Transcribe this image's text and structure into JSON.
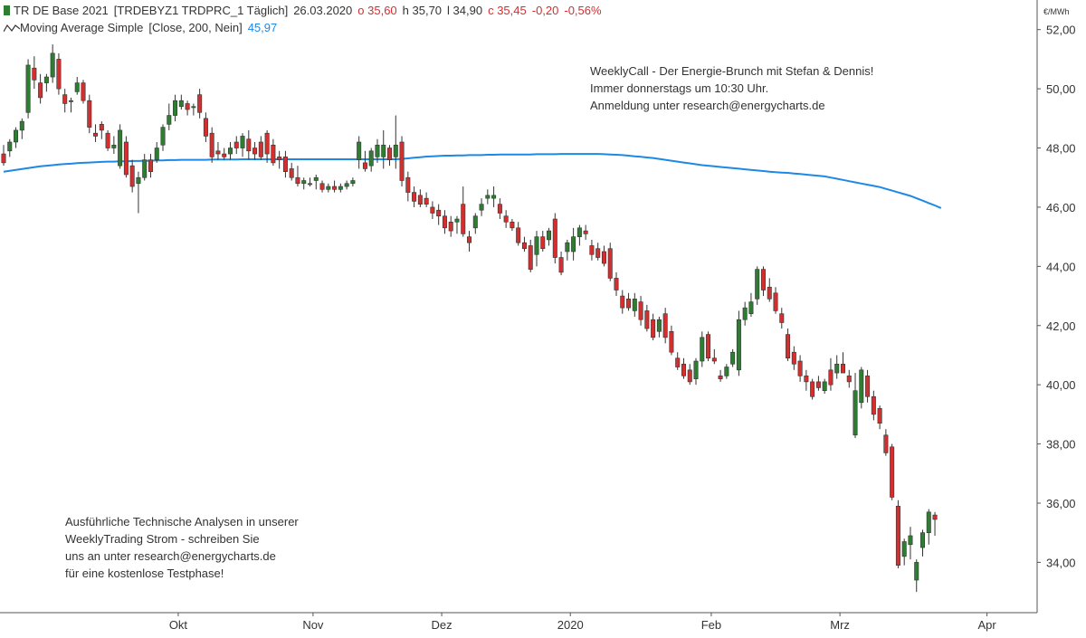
{
  "instrument": {
    "name": "TR DE Base 2021",
    "symbol": "[TRDEBYZ1 TRDPRC_1 Täglich]",
    "date": "26.03.2020",
    "open": "o 35,60",
    "high": "h 35,70",
    "low": "l 34,90",
    "close": "c 35,45",
    "change": "-0,20",
    "change_pct": "-0,56%"
  },
  "indicator": {
    "label": "Moving Average Simple",
    "params": "[Close, 200, Nein]",
    "value": "45,97"
  },
  "notes": {
    "weekly_call": [
      "WeeklyCall - Der Energie-Brunch mit Stefan & Dennis!",
      "Immer donnerstags um 10:30 Uhr.",
      "Anmeldung unter research@energycharts.de"
    ],
    "analysis": [
      "Ausführliche Technische Analysen in unserer",
      "WeeklyTrading Strom - schreiben Sie",
      "uns an unter research@energycharts.de",
      "für eine kostenlose Testphase!"
    ]
  },
  "colors": {
    "up": "#2e7d32",
    "down": "#d32f2f",
    "ma": "#1e88e5",
    "axis": "#555555",
    "text": "#333333"
  },
  "chart_data": {
    "type": "candlestick",
    "unit": "€/MWh",
    "ylim": [
      32.3,
      53.0
    ],
    "y_ticks": [
      "52,00",
      "50,00",
      "48,00",
      "46,00",
      "44,00",
      "42,00",
      "40,00",
      "38,00",
      "36,00",
      "34,00"
    ],
    "y_tick_values": [
      52,
      50,
      48,
      46,
      44,
      42,
      40,
      38,
      36,
      34
    ],
    "x_ticks": [
      "Okt",
      "Nov",
      "Dez",
      "2020",
      "Feb",
      "Mrz",
      "Apr"
    ],
    "x_tick_indices": [
      28.5,
      50.5,
      71.5,
      92.5,
      115.5,
      136.5,
      160.5
    ],
    "candles": [
      {
        "o": 47.8,
        "h": 48.1,
        "l": 47.4,
        "c": 47.5
      },
      {
        "o": 47.9,
        "h": 48.3,
        "l": 47.7,
        "c": 48.2
      },
      {
        "o": 48.2,
        "h": 48.7,
        "l": 48.0,
        "c": 48.6
      },
      {
        "o": 48.6,
        "h": 49.0,
        "l": 48.3,
        "c": 48.9
      },
      {
        "o": 49.2,
        "h": 51.0,
        "l": 49.0,
        "c": 50.8
      },
      {
        "o": 50.7,
        "h": 51.1,
        "l": 50.0,
        "c": 50.3
      },
      {
        "o": 50.2,
        "h": 50.5,
        "l": 49.5,
        "c": 49.7
      },
      {
        "o": 50.2,
        "h": 50.5,
        "l": 49.9,
        "c": 50.4
      },
      {
        "o": 50.4,
        "h": 51.5,
        "l": 50.2,
        "c": 51.2
      },
      {
        "o": 51.0,
        "h": 51.2,
        "l": 49.8,
        "c": 50.0
      },
      {
        "o": 49.8,
        "h": 50.0,
        "l": 49.2,
        "c": 49.5
      },
      {
        "o": 49.6,
        "h": 49.7,
        "l": 49.2,
        "c": 49.6
      },
      {
        "o": 49.9,
        "h": 50.4,
        "l": 49.8,
        "c": 50.2
      },
      {
        "o": 50.2,
        "h": 50.3,
        "l": 49.5,
        "c": 49.6
      },
      {
        "o": 49.6,
        "h": 49.8,
        "l": 48.5,
        "c": 48.7
      },
      {
        "o": 48.5,
        "h": 48.8,
        "l": 48.2,
        "c": 48.4
      },
      {
        "o": 48.8,
        "h": 48.9,
        "l": 48.3,
        "c": 48.6
      },
      {
        "o": 48.5,
        "h": 48.6,
        "l": 47.9,
        "c": 48.0
      },
      {
        "o": 48.0,
        "h": 48.4,
        "l": 47.8,
        "c": 48.1
      },
      {
        "o": 47.4,
        "h": 48.8,
        "l": 47.3,
        "c": 48.6
      },
      {
        "o": 48.2,
        "h": 48.4,
        "l": 47.0,
        "c": 47.1
      },
      {
        "o": 47.4,
        "h": 47.6,
        "l": 46.5,
        "c": 46.7
      },
      {
        "o": 46.8,
        "h": 47.2,
        "l": 45.8,
        "c": 47.0
      },
      {
        "o": 47.0,
        "h": 47.8,
        "l": 46.9,
        "c": 47.6
      },
      {
        "o": 47.6,
        "h": 47.8,
        "l": 47.0,
        "c": 47.2
      },
      {
        "o": 47.6,
        "h": 48.2,
        "l": 47.5,
        "c": 48.0
      },
      {
        "o": 48.1,
        "h": 48.8,
        "l": 47.9,
        "c": 48.7
      },
      {
        "o": 48.8,
        "h": 49.5,
        "l": 48.6,
        "c": 49.1
      },
      {
        "o": 49.1,
        "h": 49.8,
        "l": 48.9,
        "c": 49.6
      },
      {
        "o": 49.4,
        "h": 49.8,
        "l": 49.3,
        "c": 49.6
      },
      {
        "o": 49.5,
        "h": 49.6,
        "l": 49.1,
        "c": 49.3
      },
      {
        "o": 49.4,
        "h": 49.5,
        "l": 49.1,
        "c": 49.4
      },
      {
        "o": 49.8,
        "h": 50.0,
        "l": 49.0,
        "c": 49.2
      },
      {
        "o": 49.0,
        "h": 49.2,
        "l": 48.2,
        "c": 48.4
      },
      {
        "o": 48.5,
        "h": 48.7,
        "l": 47.5,
        "c": 47.7
      },
      {
        "o": 47.9,
        "h": 48.2,
        "l": 47.6,
        "c": 47.8
      },
      {
        "o": 47.8,
        "h": 48.0,
        "l": 47.6,
        "c": 47.7
      },
      {
        "o": 47.8,
        "h": 48.2,
        "l": 47.6,
        "c": 48.0
      },
      {
        "o": 48.2,
        "h": 48.4,
        "l": 47.8,
        "c": 48.0
      },
      {
        "o": 48.0,
        "h": 48.5,
        "l": 47.7,
        "c": 48.4
      },
      {
        "o": 48.3,
        "h": 48.6,
        "l": 47.6,
        "c": 47.9
      },
      {
        "o": 48.0,
        "h": 48.2,
        "l": 47.6,
        "c": 47.8
      },
      {
        "o": 48.2,
        "h": 48.4,
        "l": 47.6,
        "c": 47.7
      },
      {
        "o": 48.5,
        "h": 48.6,
        "l": 47.5,
        "c": 47.8
      },
      {
        "o": 48.1,
        "h": 48.3,
        "l": 47.4,
        "c": 47.5
      },
      {
        "o": 47.7,
        "h": 47.9,
        "l": 47.3,
        "c": 47.6
      },
      {
        "o": 47.7,
        "h": 47.9,
        "l": 47.0,
        "c": 47.2
      },
      {
        "o": 47.3,
        "h": 47.5,
        "l": 46.9,
        "c": 47.0
      },
      {
        "o": 47.0,
        "h": 47.4,
        "l": 46.7,
        "c": 46.8
      },
      {
        "o": 46.8,
        "h": 47.0,
        "l": 46.6,
        "c": 46.9
      },
      {
        "o": 46.8,
        "h": 47.0,
        "l": 46.7,
        "c": 46.8
      },
      {
        "o": 46.9,
        "h": 47.1,
        "l": 46.6,
        "c": 47.0
      },
      {
        "o": 46.8,
        "h": 46.9,
        "l": 46.5,
        "c": 46.6
      },
      {
        "o": 46.6,
        "h": 46.8,
        "l": 46.5,
        "c": 46.7
      },
      {
        "o": 46.7,
        "h": 46.9,
        "l": 46.5,
        "c": 46.6
      },
      {
        "o": 46.6,
        "h": 46.8,
        "l": 46.5,
        "c": 46.7
      },
      {
        "o": 46.7,
        "h": 46.9,
        "l": 46.6,
        "c": 46.8
      },
      {
        "o": 46.8,
        "h": 47.0,
        "l": 46.7,
        "c": 46.9
      },
      {
        "o": 47.6,
        "h": 48.4,
        "l": 47.3,
        "c": 48.2
      },
      {
        "o": 47.5,
        "h": 47.9,
        "l": 47.2,
        "c": 47.3
      },
      {
        "o": 47.4,
        "h": 48.0,
        "l": 47.2,
        "c": 47.9
      },
      {
        "o": 47.7,
        "h": 48.3,
        "l": 47.5,
        "c": 48.1
      },
      {
        "o": 47.7,
        "h": 48.6,
        "l": 47.3,
        "c": 48.1
      },
      {
        "o": 48.0,
        "h": 48.1,
        "l": 47.4,
        "c": 47.6
      },
      {
        "o": 47.7,
        "h": 49.1,
        "l": 47.3,
        "c": 48.1
      },
      {
        "o": 48.2,
        "h": 48.4,
        "l": 46.7,
        "c": 46.9
      },
      {
        "o": 47.0,
        "h": 47.2,
        "l": 46.2,
        "c": 46.5
      },
      {
        "o": 46.5,
        "h": 46.7,
        "l": 46.0,
        "c": 46.2
      },
      {
        "o": 46.4,
        "h": 46.6,
        "l": 46.0,
        "c": 46.1
      },
      {
        "o": 46.3,
        "h": 46.5,
        "l": 46.0,
        "c": 46.1
      },
      {
        "o": 46.0,
        "h": 46.2,
        "l": 45.6,
        "c": 45.8
      },
      {
        "o": 45.9,
        "h": 46.1,
        "l": 45.4,
        "c": 45.7
      },
      {
        "o": 45.7,
        "h": 45.9,
        "l": 45.1,
        "c": 45.3
      },
      {
        "o": 45.5,
        "h": 45.7,
        "l": 45.0,
        "c": 45.2
      },
      {
        "o": 45.5,
        "h": 45.7,
        "l": 45.1,
        "c": 45.6
      },
      {
        "o": 46.1,
        "h": 46.7,
        "l": 45.0,
        "c": 45.1
      },
      {
        "o": 45.0,
        "h": 45.2,
        "l": 44.5,
        "c": 44.8
      },
      {
        "o": 45.3,
        "h": 45.8,
        "l": 45.1,
        "c": 45.7
      },
      {
        "o": 45.9,
        "h": 46.3,
        "l": 45.7,
        "c": 46.1
      },
      {
        "o": 46.3,
        "h": 46.6,
        "l": 46.1,
        "c": 46.4
      },
      {
        "o": 46.3,
        "h": 46.7,
        "l": 46.0,
        "c": 46.4
      },
      {
        "o": 46.1,
        "h": 46.3,
        "l": 45.6,
        "c": 45.8
      },
      {
        "o": 45.7,
        "h": 45.9,
        "l": 45.3,
        "c": 45.5
      },
      {
        "o": 45.5,
        "h": 45.6,
        "l": 45.2,
        "c": 45.3
      },
      {
        "o": 45.3,
        "h": 45.5,
        "l": 44.7,
        "c": 44.8
      },
      {
        "o": 44.8,
        "h": 45.0,
        "l": 44.5,
        "c": 44.6
      },
      {
        "o": 44.7,
        "h": 44.9,
        "l": 43.8,
        "c": 43.9
      },
      {
        "o": 44.4,
        "h": 45.2,
        "l": 44.0,
        "c": 45.0
      },
      {
        "o": 45.0,
        "h": 45.2,
        "l": 44.5,
        "c": 44.6
      },
      {
        "o": 44.9,
        "h": 45.3,
        "l": 44.7,
        "c": 45.2
      },
      {
        "o": 45.6,
        "h": 45.8,
        "l": 44.1,
        "c": 44.3
      },
      {
        "o": 44.3,
        "h": 44.5,
        "l": 43.7,
        "c": 43.8
      },
      {
        "o": 44.5,
        "h": 44.9,
        "l": 44.2,
        "c": 44.8
      },
      {
        "o": 44.5,
        "h": 45.3,
        "l": 44.2,
        "c": 45.0
      },
      {
        "o": 45.0,
        "h": 45.4,
        "l": 44.7,
        "c": 45.3
      },
      {
        "o": 45.2,
        "h": 45.4,
        "l": 44.9,
        "c": 45.1
      },
      {
        "o": 44.7,
        "h": 44.9,
        "l": 44.2,
        "c": 44.4
      },
      {
        "o": 44.6,
        "h": 44.8,
        "l": 44.2,
        "c": 44.3
      },
      {
        "o": 44.5,
        "h": 44.7,
        "l": 44.0,
        "c": 44.1
      },
      {
        "o": 44.6,
        "h": 44.8,
        "l": 43.5,
        "c": 43.6
      },
      {
        "o": 43.6,
        "h": 43.8,
        "l": 43.0,
        "c": 43.2
      },
      {
        "o": 43.0,
        "h": 43.2,
        "l": 42.4,
        "c": 42.6
      },
      {
        "o": 42.9,
        "h": 43.1,
        "l": 42.5,
        "c": 42.6
      },
      {
        "o": 42.5,
        "h": 43.1,
        "l": 42.3,
        "c": 42.9
      },
      {
        "o": 42.8,
        "h": 43.0,
        "l": 42.0,
        "c": 42.2
      },
      {
        "o": 42.5,
        "h": 42.7,
        "l": 41.8,
        "c": 41.9
      },
      {
        "o": 42.2,
        "h": 42.4,
        "l": 41.5,
        "c": 41.6
      },
      {
        "o": 41.8,
        "h": 42.3,
        "l": 41.6,
        "c": 42.2
      },
      {
        "o": 42.4,
        "h": 42.6,
        "l": 41.4,
        "c": 41.6
      },
      {
        "o": 41.8,
        "h": 42.0,
        "l": 41.0,
        "c": 41.1
      },
      {
        "o": 40.9,
        "h": 41.1,
        "l": 40.5,
        "c": 40.6
      },
      {
        "o": 40.7,
        "h": 40.9,
        "l": 40.2,
        "c": 40.3
      },
      {
        "o": 40.5,
        "h": 40.7,
        "l": 40.0,
        "c": 40.1
      },
      {
        "o": 40.2,
        "h": 40.9,
        "l": 40.0,
        "c": 40.8
      },
      {
        "o": 40.8,
        "h": 41.8,
        "l": 40.6,
        "c": 41.6
      },
      {
        "o": 41.7,
        "h": 41.8,
        "l": 40.8,
        "c": 40.9
      },
      {
        "o": 40.9,
        "h": 41.2,
        "l": 40.7,
        "c": 40.8
      },
      {
        "o": 40.3,
        "h": 40.5,
        "l": 40.1,
        "c": 40.2
      },
      {
        "o": 40.3,
        "h": 40.7,
        "l": 40.2,
        "c": 40.6
      },
      {
        "o": 40.7,
        "h": 41.2,
        "l": 40.6,
        "c": 41.1
      },
      {
        "o": 40.5,
        "h": 42.5,
        "l": 40.3,
        "c": 42.2
      },
      {
        "o": 42.2,
        "h": 42.8,
        "l": 42.0,
        "c": 42.6
      },
      {
        "o": 42.4,
        "h": 43.1,
        "l": 42.3,
        "c": 42.8
      },
      {
        "o": 42.9,
        "h": 44.0,
        "l": 42.7,
        "c": 43.9
      },
      {
        "o": 43.9,
        "h": 44.0,
        "l": 43.0,
        "c": 43.2
      },
      {
        "o": 43.3,
        "h": 43.6,
        "l": 42.8,
        "c": 42.9
      },
      {
        "o": 43.1,
        "h": 43.3,
        "l": 42.4,
        "c": 42.5
      },
      {
        "o": 42.4,
        "h": 42.6,
        "l": 41.9,
        "c": 42.1
      },
      {
        "o": 41.7,
        "h": 41.9,
        "l": 40.8,
        "c": 40.9
      },
      {
        "o": 41.1,
        "h": 41.3,
        "l": 40.5,
        "c": 40.7
      },
      {
        "o": 40.8,
        "h": 41.0,
        "l": 40.1,
        "c": 40.3
      },
      {
        "o": 40.3,
        "h": 40.5,
        "l": 39.8,
        "c": 40.1
      },
      {
        "o": 40.1,
        "h": 40.2,
        "l": 39.5,
        "c": 39.6
      },
      {
        "o": 40.1,
        "h": 40.3,
        "l": 39.8,
        "c": 39.9
      },
      {
        "o": 39.8,
        "h": 40.2,
        "l": 39.7,
        "c": 40.1
      },
      {
        "o": 40.5,
        "h": 40.9,
        "l": 39.8,
        "c": 40.0
      },
      {
        "o": 40.4,
        "h": 41.0,
        "l": 40.2,
        "c": 40.7
      },
      {
        "o": 40.7,
        "h": 41.1,
        "l": 40.5,
        "c": 40.4
      },
      {
        "o": 40.3,
        "h": 40.5,
        "l": 39.9,
        "c": 40.1
      },
      {
        "o": 38.3,
        "h": 40.4,
        "l": 38.2,
        "c": 39.8
      },
      {
        "o": 39.4,
        "h": 40.6,
        "l": 39.2,
        "c": 40.5
      },
      {
        "o": 40.3,
        "h": 40.5,
        "l": 39.4,
        "c": 39.6
      },
      {
        "o": 39.6,
        "h": 39.8,
        "l": 38.8,
        "c": 39.0
      },
      {
        "o": 39.2,
        "h": 39.3,
        "l": 38.5,
        "c": 38.7
      },
      {
        "o": 38.3,
        "h": 38.5,
        "l": 37.6,
        "c": 37.7
      },
      {
        "o": 37.9,
        "h": 38.0,
        "l": 36.1,
        "c": 36.2
      },
      {
        "o": 35.9,
        "h": 36.1,
        "l": 33.8,
        "c": 33.9
      },
      {
        "o": 34.2,
        "h": 34.8,
        "l": 33.9,
        "c": 34.7
      },
      {
        "o": 34.6,
        "h": 35.2,
        "l": 34.1,
        "c": 34.9
      },
      {
        "o": 33.4,
        "h": 34.1,
        "l": 33.0,
        "c": 34.0
      },
      {
        "o": 34.5,
        "h": 35.1,
        "l": 34.2,
        "c": 35.0
      },
      {
        "o": 35.0,
        "h": 35.8,
        "l": 34.6,
        "c": 35.7
      },
      {
        "o": 35.6,
        "h": 35.7,
        "l": 34.9,
        "c": 35.45
      }
    ],
    "ma": [
      47.2,
      47.23,
      47.26,
      47.29,
      47.32,
      47.35,
      47.38,
      47.4,
      47.42,
      47.44,
      47.46,
      47.47,
      47.49,
      47.5,
      47.51,
      47.52,
      47.53,
      47.54,
      47.54,
      47.55,
      47.55,
      47.56,
      47.56,
      47.57,
      47.57,
      47.58,
      47.58,
      47.59,
      47.59,
      47.6,
      47.6,
      47.6,
      47.6,
      47.6,
      47.61,
      47.61,
      47.61,
      47.61,
      47.61,
      47.62,
      47.62,
      47.62,
      47.62,
      47.62,
      47.62,
      47.62,
      47.62,
      47.62,
      47.62,
      47.62,
      47.62,
      47.62,
      47.62,
      47.62,
      47.62,
      47.62,
      47.62,
      47.62,
      47.62,
      47.62,
      47.62,
      47.62,
      47.62,
      47.62,
      47.62,
      47.63,
      47.65,
      47.67,
      47.69,
      47.71,
      47.72,
      47.73,
      47.74,
      47.74,
      47.75,
      47.75,
      47.76,
      47.76,
      47.76,
      47.77,
      47.77,
      47.78,
      47.78,
      47.78,
      47.78,
      47.78,
      47.78,
      47.79,
      47.79,
      47.79,
      47.79,
      47.8,
      47.8,
      47.8,
      47.8,
      47.8,
      47.8,
      47.8,
      47.79,
      47.78,
      47.77,
      47.76,
      47.74,
      47.72,
      47.7,
      47.68,
      47.66,
      47.63,
      47.6,
      47.57,
      47.54,
      47.51,
      47.48,
      47.45,
      47.42,
      47.4,
      47.38,
      47.36,
      47.34,
      47.32,
      47.3,
      47.28,
      47.26,
      47.24,
      47.22,
      47.2,
      47.18,
      47.17,
      47.16,
      47.14,
      47.12,
      47.1,
      47.08,
      47.06,
      47.04,
      47.0,
      46.96,
      46.92,
      46.88,
      46.84,
      46.8,
      46.76,
      46.72,
      46.68,
      46.62,
      46.56,
      46.5,
      46.44,
      46.38,
      46.3,
      46.22,
      46.14,
      46.06,
      45.97
    ]
  }
}
